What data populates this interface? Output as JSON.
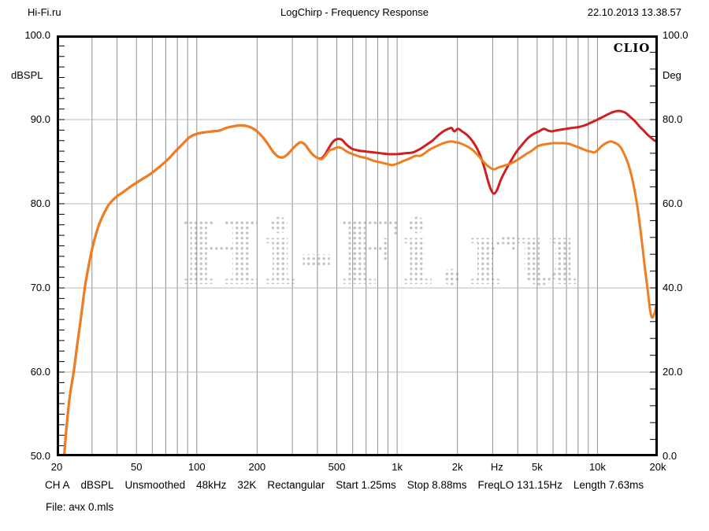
{
  "header": {
    "site": "Hi-Fi.ru",
    "title": "LogChirp - Frequency Response",
    "datetime": "22.10.2013 13.38.57"
  },
  "plot": {
    "brand": "CLIO",
    "watermark": "Hi-Fi.ru"
  },
  "status_line": {
    "items": [
      "CH A",
      "dBSPL",
      "Unsmoothed",
      "48kHz",
      "32K",
      "Rectangular",
      "Start 1.25ms",
      "Stop 8.88ms",
      "FreqLO 131.15Hz",
      "Length 7.63ms"
    ]
  },
  "file_line": "File: ачх 0.mls",
  "colors": {
    "curve_red": "#d01f1f",
    "curve_orange": "#f07d1e",
    "grid_vertical": "#8f8f8f",
    "grid_horizontal": "#b8b8b8",
    "border": "#000000",
    "watermark_dots": "#c4c4c4"
  },
  "chart_data": {
    "type": "line",
    "title": "LogChirp - Frequency Response",
    "grid": true,
    "x_axis": {
      "scale": "log",
      "min": 20,
      "max": 20000,
      "unit": "Hz",
      "ticks": [
        {
          "label": "20",
          "f": 20
        },
        {
          "label": "50",
          "f": 50
        },
        {
          "label": "100",
          "f": 100
        },
        {
          "label": "200",
          "f": 200
        },
        {
          "label": "500",
          "f": 500
        },
        {
          "label": "1k",
          "f": 1000
        },
        {
          "label": "2k",
          "f": 2000
        },
        {
          "label": "Hz",
          "f": 3150
        },
        {
          "label": "5k",
          "f": 5000
        },
        {
          "label": "10k",
          "f": 10000
        },
        {
          "label": "20k",
          "f": 20000
        }
      ]
    },
    "y_axis_left": {
      "unit": "dBSPL",
      "min": 50,
      "max": 100,
      "ticks": [
        {
          "label": "100.0",
          "value": 100
        },
        {
          "label": "90.0",
          "value": 90
        },
        {
          "label": "80.0",
          "value": 80
        },
        {
          "label": "70.0",
          "value": 70
        },
        {
          "label": "60.0",
          "value": 60
        },
        {
          "label": "50.0",
          "value": 50
        }
      ]
    },
    "y_axis_right": {
      "unit": "Deg",
      "min": 0,
      "max": 100,
      "ticks": [
        {
          "label": "100.0",
          "value": 100
        },
        {
          "label": "80.0",
          "value": 80
        },
        {
          "label": "60.0",
          "value": 60
        },
        {
          "label": "40.0",
          "value": 40
        },
        {
          "label": "20.0",
          "value": 20
        },
        {
          "label": "0.0",
          "value": 0
        }
      ]
    },
    "series": [
      {
        "name": "response-red",
        "color": "#d01f1f",
        "points": [
          [
            21.8,
            50
          ],
          [
            22.3,
            53
          ],
          [
            23.2,
            57
          ],
          [
            24.3,
            60
          ],
          [
            25.4,
            63.5
          ],
          [
            26.6,
            67
          ],
          [
            27.6,
            70
          ],
          [
            28.7,
            72.3
          ],
          [
            30,
            74.6
          ],
          [
            31.5,
            76.5
          ],
          [
            33,
            77.9
          ],
          [
            34.5,
            78.9
          ],
          [
            36.2,
            79.8
          ],
          [
            38,
            80.4
          ],
          [
            40,
            80.9
          ],
          [
            43,
            81.4
          ],
          [
            46.5,
            82
          ],
          [
            50,
            82.5
          ],
          [
            55,
            83.1
          ],
          [
            60,
            83.7
          ],
          [
            66,
            84.5
          ],
          [
            72,
            85.3
          ],
          [
            78,
            86.2
          ],
          [
            85,
            87.1
          ],
          [
            92,
            87.9
          ],
          [
            100,
            88.3
          ],
          [
            110,
            88.5
          ],
          [
            120,
            88.6
          ],
          [
            130,
            88.7
          ],
          [
            140,
            89
          ],
          [
            152,
            89.2
          ],
          [
            165,
            89.3
          ],
          [
            180,
            89.2
          ],
          [
            195,
            88.8
          ],
          [
            210,
            88.1
          ],
          [
            225,
            87.2
          ],
          [
            240,
            86.2
          ],
          [
            255,
            85.6
          ],
          [
            268,
            85.5
          ],
          [
            282,
            85.8
          ],
          [
            300,
            86.5
          ],
          [
            315,
            87
          ],
          [
            330,
            87.3
          ],
          [
            348,
            87
          ],
          [
            365,
            86.3
          ],
          [
            385,
            85.7
          ],
          [
            405,
            85.4
          ],
          [
            420,
            85.4
          ],
          [
            438,
            85.9
          ],
          [
            458,
            86.7
          ],
          [
            480,
            87.4
          ],
          [
            505,
            87.7
          ],
          [
            530,
            87.6
          ],
          [
            560,
            87
          ],
          [
            600,
            86.5
          ],
          [
            650,
            86.3
          ],
          [
            705,
            86.2
          ],
          [
            765,
            86.1
          ],
          [
            830,
            86
          ],
          [
            900,
            85.9
          ],
          [
            1000,
            85.9
          ],
          [
            1100,
            86
          ],
          [
            1200,
            86.1
          ],
          [
            1300,
            86.5
          ],
          [
            1400,
            87
          ],
          [
            1500,
            87.5
          ],
          [
            1600,
            88.1
          ],
          [
            1700,
            88.6
          ],
          [
            1800,
            88.9
          ],
          [
            1870,
            89
          ],
          [
            1930,
            88.6
          ],
          [
            2010,
            88.9
          ],
          [
            2110,
            88.6
          ],
          [
            2250,
            88.1
          ],
          [
            2400,
            87.3
          ],
          [
            2550,
            86.2
          ],
          [
            2700,
            84.6
          ],
          [
            2850,
            82.6
          ],
          [
            2950,
            81.6
          ],
          [
            3050,
            81.2
          ],
          [
            3160,
            81.7
          ],
          [
            3300,
            82.9
          ],
          [
            3500,
            84.1
          ],
          [
            3720,
            85.2
          ],
          [
            3950,
            86.2
          ],
          [
            4200,
            87
          ],
          [
            4500,
            87.8
          ],
          [
            4800,
            88.3
          ],
          [
            5100,
            88.6
          ],
          [
            5400,
            88.9
          ],
          [
            5650,
            88.7
          ],
          [
            5900,
            88.6
          ],
          [
            6200,
            88.7
          ],
          [
            6550,
            88.8
          ],
          [
            6950,
            88.9
          ],
          [
            7400,
            89
          ],
          [
            8000,
            89.1
          ],
          [
            8600,
            89.3
          ],
          [
            9200,
            89.6
          ],
          [
            9800,
            89.9
          ],
          [
            10400,
            90.2
          ],
          [
            11000,
            90.5
          ],
          [
            11700,
            90.8
          ],
          [
            12400,
            91
          ],
          [
            13100,
            91
          ],
          [
            13800,
            90.8
          ],
          [
            14600,
            90.3
          ],
          [
            15400,
            89.8
          ],
          [
            16200,
            89.2
          ],
          [
            17000,
            88.7
          ],
          [
            17800,
            88.2
          ],
          [
            18600,
            87.8
          ],
          [
            19300,
            87.5
          ],
          [
            20000,
            87.4
          ]
        ]
      },
      {
        "name": "response-orange",
        "color": "#f07d1e",
        "points": [
          [
            21.8,
            50
          ],
          [
            22.3,
            53
          ],
          [
            23.2,
            57
          ],
          [
            24.3,
            60
          ],
          [
            25.4,
            63.5
          ],
          [
            26.6,
            67
          ],
          [
            27.6,
            70
          ],
          [
            28.7,
            72.3
          ],
          [
            30,
            74.6
          ],
          [
            31.5,
            76.5
          ],
          [
            33,
            77.9
          ],
          [
            34.5,
            78.9
          ],
          [
            36.2,
            79.8
          ],
          [
            38,
            80.4
          ],
          [
            40,
            80.9
          ],
          [
            43,
            81.4
          ],
          [
            46.5,
            82
          ],
          [
            50,
            82.5
          ],
          [
            55,
            83.1
          ],
          [
            60,
            83.7
          ],
          [
            66,
            84.5
          ],
          [
            72,
            85.3
          ],
          [
            78,
            86.2
          ],
          [
            85,
            87.1
          ],
          [
            92,
            87.9
          ],
          [
            100,
            88.3
          ],
          [
            110,
            88.5
          ],
          [
            120,
            88.6
          ],
          [
            130,
            88.7
          ],
          [
            140,
            89
          ],
          [
            152,
            89.2
          ],
          [
            165,
            89.3
          ],
          [
            180,
            89.2
          ],
          [
            195,
            88.8
          ],
          [
            210,
            88.1
          ],
          [
            225,
            87.2
          ],
          [
            240,
            86.2
          ],
          [
            255,
            85.6
          ],
          [
            268,
            85.5
          ],
          [
            282,
            85.8
          ],
          [
            300,
            86.5
          ],
          [
            315,
            87
          ],
          [
            330,
            87.3
          ],
          [
            348,
            87
          ],
          [
            365,
            86.3
          ],
          [
            385,
            85.7
          ],
          [
            405,
            85.4
          ],
          [
            420,
            85.3
          ],
          [
            438,
            85.7
          ],
          [
            458,
            86.3
          ],
          [
            480,
            86.5
          ],
          [
            505,
            86.7
          ],
          [
            530,
            86.6
          ],
          [
            560,
            86.2
          ],
          [
            600,
            85.9
          ],
          [
            650,
            85.6
          ],
          [
            705,
            85.4
          ],
          [
            765,
            85.1
          ],
          [
            830,
            84.9
          ],
          [
            900,
            84.7
          ],
          [
            950,
            84.6
          ],
          [
            1010,
            84.8
          ],
          [
            1080,
            85.1
          ],
          [
            1160,
            85.4
          ],
          [
            1240,
            85.7
          ],
          [
            1310,
            85.7
          ],
          [
            1390,
            86.1
          ],
          [
            1470,
            86.5
          ],
          [
            1560,
            86.8
          ],
          [
            1660,
            87.1
          ],
          [
            1760,
            87.3
          ],
          [
            1860,
            87.4
          ],
          [
            1960,
            87.3
          ],
          [
            2060,
            87.2
          ],
          [
            2200,
            86.9
          ],
          [
            2350,
            86.5
          ],
          [
            2500,
            85.9
          ],
          [
            2650,
            85.2
          ],
          [
            2800,
            84.6
          ],
          [
            2950,
            84.2
          ],
          [
            3060,
            84.1
          ],
          [
            3200,
            84.3
          ],
          [
            3400,
            84.5
          ],
          [
            3620,
            84.7
          ],
          [
            3850,
            85
          ],
          [
            4100,
            85.4
          ],
          [
            4400,
            85.9
          ],
          [
            4700,
            86.3
          ],
          [
            5000,
            86.8
          ],
          [
            5300,
            87
          ],
          [
            5600,
            87.1
          ],
          [
            6000,
            87.2
          ],
          [
            6400,
            87.2
          ],
          [
            6800,
            87.2
          ],
          [
            7250,
            87.1
          ],
          [
            7650,
            86.9
          ],
          [
            8050,
            86.7
          ],
          [
            8450,
            86.5
          ],
          [
            8850,
            86.3
          ],
          [
            9250,
            86.2
          ],
          [
            9650,
            86.1
          ],
          [
            10050,
            86.4
          ],
          [
            10450,
            86.8
          ],
          [
            10850,
            87.1
          ],
          [
            11250,
            87.3
          ],
          [
            11650,
            87.4
          ],
          [
            12050,
            87.3
          ],
          [
            12550,
            87.1
          ],
          [
            13050,
            86.7
          ],
          [
            13600,
            85.9
          ],
          [
            14200,
            84.8
          ],
          [
            14800,
            83.3
          ],
          [
            15400,
            81.3
          ],
          [
            16000,
            78.8
          ],
          [
            16600,
            75.8
          ],
          [
            17200,
            72.6
          ],
          [
            17800,
            69.8
          ],
          [
            18300,
            67.4
          ],
          [
            18700,
            66.5
          ],
          [
            19200,
            66.9
          ],
          [
            19600,
            67.8
          ],
          [
            20000,
            69.2
          ]
        ]
      }
    ]
  }
}
